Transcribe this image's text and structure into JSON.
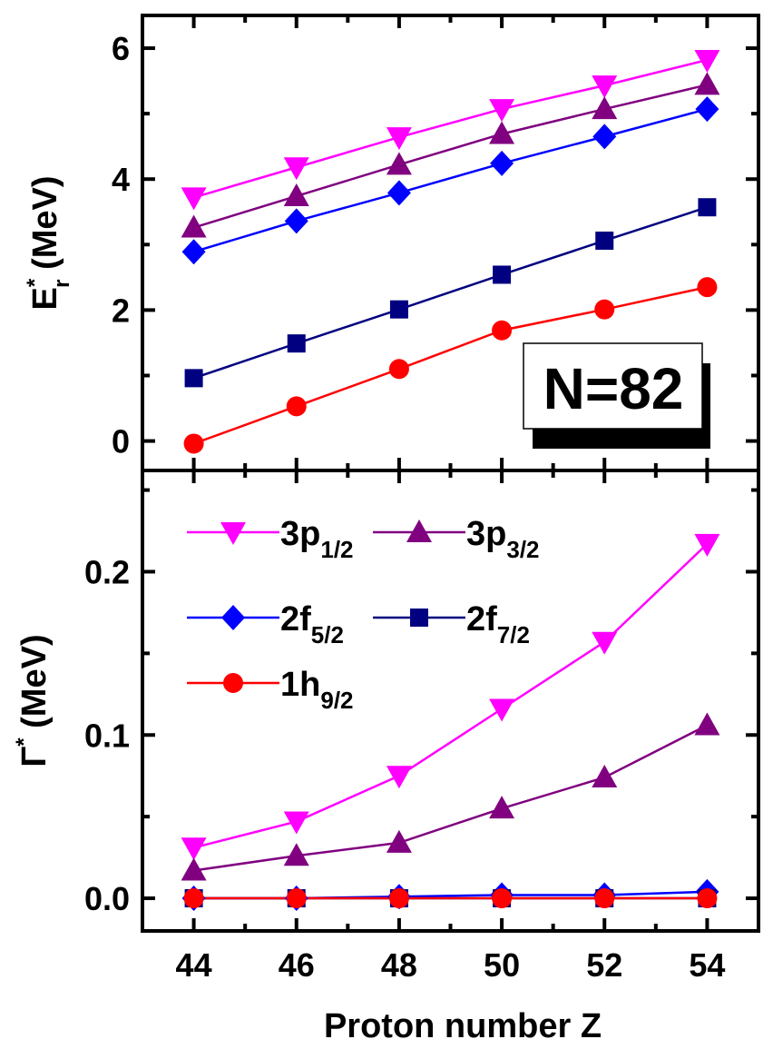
{
  "chart_data": [
    {
      "type": "line",
      "panel": "top",
      "ylabel_main": "E",
      "ylabel_sup": "*",
      "ylabel_sub": "r",
      "ylabel_unit": " (MeV)",
      "xlim": [
        43,
        55
      ],
      "ylim": [
        -0.45,
        6.5
      ],
      "yticks": [
        0,
        2,
        4,
        6
      ],
      "annotation": "N=82",
      "x": [
        44,
        46,
        48,
        50,
        52,
        54
      ],
      "series": [
        {
          "name": "3p1/2",
          "label_main": "3p",
          "label_sub": "1/2",
          "color": "#FF00FF",
          "marker": "triangle-down",
          "values": [
            3.72,
            4.18,
            4.64,
            5.07,
            5.43,
            5.82
          ]
        },
        {
          "name": "3p3/2",
          "label_main": "3p",
          "label_sub": "3/2",
          "color": "#800080",
          "marker": "triangle-up",
          "values": [
            3.26,
            3.74,
            4.22,
            4.69,
            5.07,
            5.44
          ]
        },
        {
          "name": "2f5/2",
          "label_main": "2f",
          "label_sub": "5/2",
          "color": "#0000FF",
          "marker": "diamond",
          "values": [
            2.89,
            3.36,
            3.79,
            4.24,
            4.65,
            5.07
          ]
        },
        {
          "name": "2f7/2",
          "label_main": "2f",
          "label_sub": "7/2",
          "color": "#000080",
          "marker": "square",
          "values": [
            0.96,
            1.49,
            2.01,
            2.54,
            3.06,
            3.57
          ]
        },
        {
          "name": "1h9/2",
          "label_main": "1h",
          "label_sub": "9/2",
          "color": "#FF0000",
          "marker": "circle",
          "values": [
            -0.04,
            0.53,
            1.1,
            1.69,
            2.01,
            2.35
          ]
        }
      ]
    },
    {
      "type": "line",
      "panel": "bottom",
      "ylabel_main": "Γ",
      "ylabel_sup": "*",
      "ylabel_unit": " (MeV)",
      "xlabel": "Proton number Z",
      "xlim": [
        43,
        55
      ],
      "ylim": [
        -0.02,
        0.262
      ],
      "yticks": [
        0.0,
        0.1,
        0.2
      ],
      "ytick_labels": [
        "0.0",
        "0.1",
        "0.2"
      ],
      "xticks": [
        44,
        46,
        48,
        50,
        52,
        54
      ],
      "legend": "top-left",
      "x": [
        44,
        46,
        48,
        50,
        52,
        54
      ],
      "series": [
        {
          "name": "3p1/2",
          "color": "#FF00FF",
          "marker": "triangle-down",
          "values": [
            0.031,
            0.047,
            0.075,
            0.116,
            0.157,
            0.217
          ]
        },
        {
          "name": "3p3/2",
          "color": "#800080",
          "marker": "triangle-up",
          "values": [
            0.017,
            0.026,
            0.034,
            0.055,
            0.074,
            0.106
          ]
        },
        {
          "name": "2f5/2",
          "color": "#0000FF",
          "marker": "diamond",
          "values": [
            0.0,
            0.0,
            0.001,
            0.002,
            0.002,
            0.004
          ]
        },
        {
          "name": "2f7/2",
          "color": "#000080",
          "marker": "square",
          "values": [
            0.0,
            0.0,
            0.0,
            0.0,
            0.0,
            0.0
          ]
        },
        {
          "name": "1h9/2",
          "color": "#FF0000",
          "marker": "circle",
          "values": [
            0.0,
            0.0,
            0.0,
            0.0,
            0.0,
            0.0
          ]
        }
      ]
    }
  ]
}
